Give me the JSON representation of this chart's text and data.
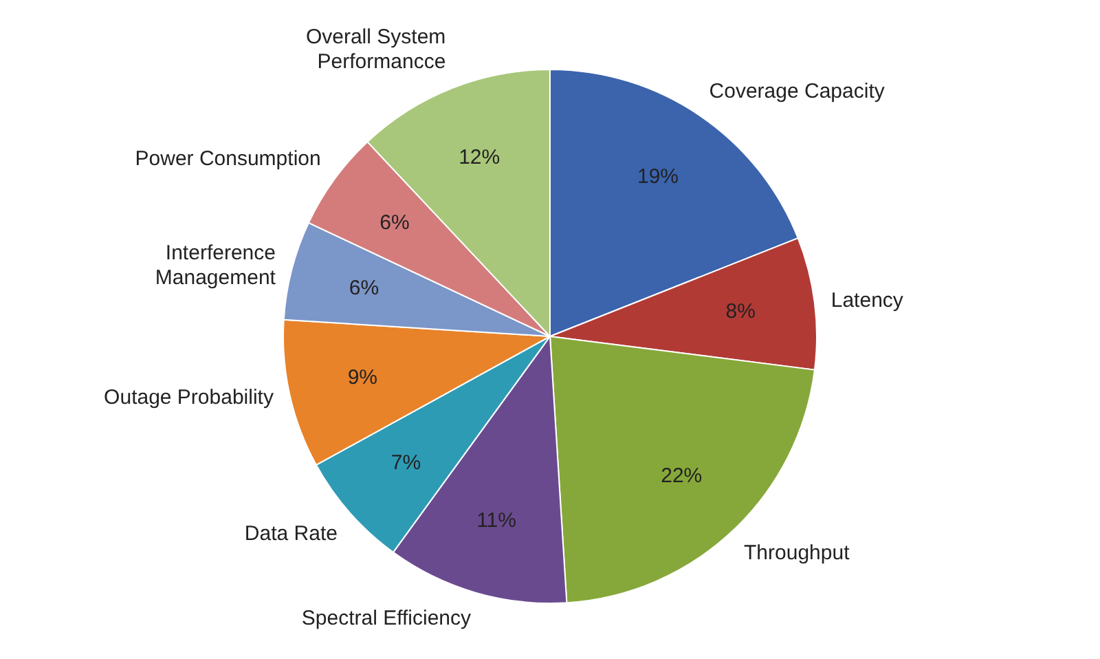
{
  "chart_data": {
    "type": "pie",
    "categories": [
      "Coverage Capacity",
      "Latency",
      "Throughput",
      "Spectral Efficiency",
      "Data Rate",
      "Outage Probability",
      "Interference Management",
      "Power Consumption",
      "Overall System Performancce"
    ],
    "values": [
      19,
      8,
      22,
      11,
      7,
      9,
      6,
      6,
      12
    ],
    "value_labels": [
      "19%",
      "8%",
      "22%",
      "11%",
      "7%",
      "9%",
      "6%",
      "6%",
      "12%"
    ],
    "colors": [
      "#3b64ad",
      "#b23a35",
      "#86a83a",
      "#6a4a8f",
      "#2e9bb5",
      "#e8832a",
      "#7b96c8",
      "#d47c7c",
      "#a9c77a"
    ],
    "legend": false
  }
}
